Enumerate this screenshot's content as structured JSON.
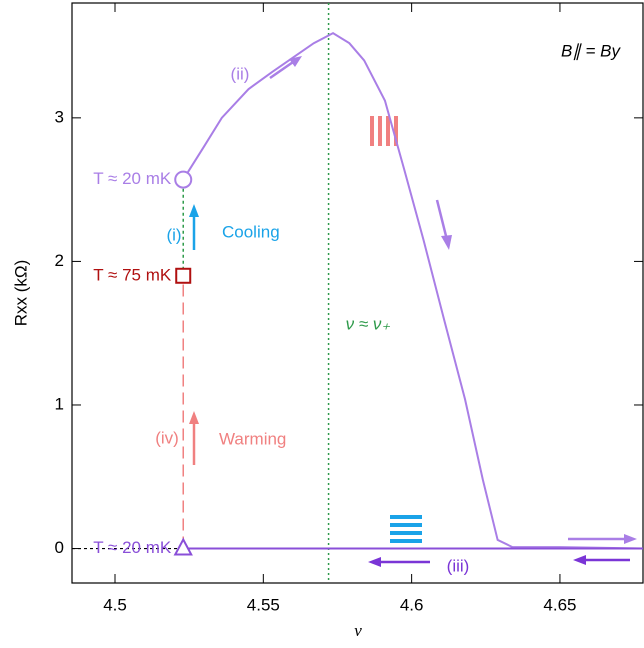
{
  "chart_data": {
    "type": "line",
    "x_label": "ν",
    "y_label": "Rxx (kΩ)",
    "xlim": [
      4.4855,
      4.678
    ],
    "ylim": [
      -0.24,
      3.8
    ],
    "xticks": [
      4.5,
      4.55,
      4.6,
      4.65
    ],
    "yticks": [
      0,
      1,
      2,
      3
    ],
    "series": [
      {
        "color": "#a97ee6",
        "x": [
          4.523,
          4.53,
          4.536,
          4.545,
          4.553,
          4.56,
          4.567,
          4.5735,
          4.579,
          4.584,
          4.591,
          4.5975,
          4.604,
          4.611,
          4.618,
          4.624,
          4.629,
          4.634,
          4.65,
          4.678
        ],
        "values": [
          2.57,
          2.8,
          3.0,
          3.2,
          3.32,
          3.42,
          3.52,
          3.59,
          3.52,
          3.4,
          3.12,
          2.64,
          2.15,
          1.59,
          1.04,
          0.48,
          0.06,
          0.01,
          0.01,
          0
        ]
      },
      {
        "color": "#8a4fd8",
        "x": [
          4.523,
          4.678
        ],
        "values": [
          0,
          0
        ]
      }
    ],
    "vline": 4.572,
    "markers": [
      {
        "x": 4.523,
        "y": 2.57,
        "label": "T ≈ 20 mK",
        "color": "#a97ee6"
      },
      {
        "x": 4.523,
        "y": 1.9,
        "label": "T ≈ 75 mK",
        "color": "#b01010"
      },
      {
        "x": 4.523,
        "y": 0,
        "label": "T ≈ 20 mK",
        "color": "#8a4fd8"
      }
    ],
    "annotations": [
      "(i)",
      "Cooling",
      "(ii)",
      "(iii)",
      "(iv)",
      "Warming",
      "ν ≈ ν₊",
      "B∥ = By"
    ]
  }
}
